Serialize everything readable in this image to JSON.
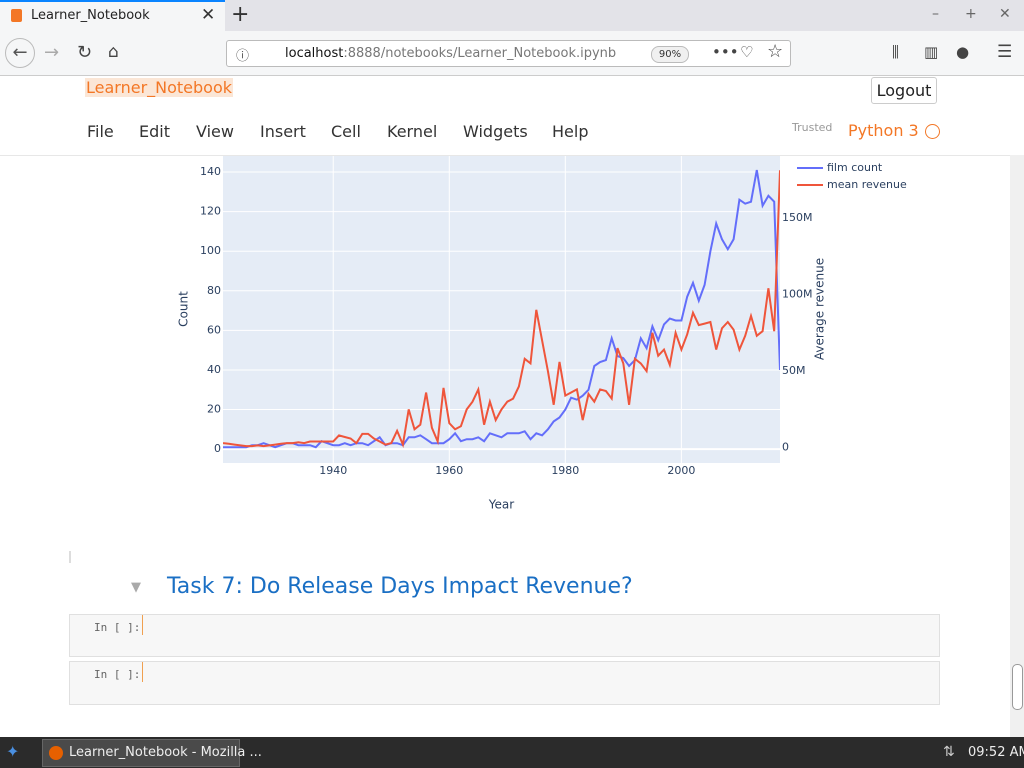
{
  "browser": {
    "tab_title": "Learner_Notebook",
    "url_host": "localhost",
    "url_rest": ":8888/notebooks/Learner_Notebook.ipynb",
    "zoom": "90%"
  },
  "notebook": {
    "name": "Learner_Notebook",
    "logout": "Logout",
    "menu": [
      "File",
      "Edit",
      "View",
      "Insert",
      "Cell",
      "Kernel",
      "Widgets",
      "Help"
    ],
    "trusted": "Trusted",
    "kernel": "Python 3"
  },
  "chart_data": {
    "type": "line",
    "xlabel": "Year",
    "ylabel": "Count",
    "y2label": "Average revenue",
    "grid": true,
    "legend": "top-right",
    "x": [
      1921,
      1922,
      1923,
      1924,
      1925,
      1926,
      1927,
      1928,
      1929,
      1930,
      1931,
      1932,
      1933,
      1934,
      1935,
      1936,
      1937,
      1938,
      1939,
      1940,
      1941,
      1942,
      1943,
      1944,
      1945,
      1946,
      1947,
      1948,
      1949,
      1950,
      1951,
      1952,
      1953,
      1954,
      1955,
      1956,
      1957,
      1958,
      1959,
      1960,
      1961,
      1962,
      1963,
      1964,
      1965,
      1966,
      1967,
      1968,
      1969,
      1970,
      1971,
      1972,
      1973,
      1974,
      1975,
      1976,
      1977,
      1978,
      1979,
      1980,
      1981,
      1982,
      1983,
      1984,
      1985,
      1986,
      1987,
      1988,
      1989,
      1990,
      1991,
      1992,
      1993,
      1994,
      1995,
      1996,
      1997,
      1998,
      1999,
      2000,
      2001,
      2002,
      2003,
      2004,
      2005,
      2006,
      2007,
      2008,
      2009,
      2010,
      2011,
      2012,
      2013,
      2014,
      2015,
      2016,
      2017
    ],
    "xlim": [
      1921,
      2017
    ],
    "xticks": [
      1940,
      1960,
      1980,
      2000
    ],
    "ylim": [
      -7,
      148.6
    ],
    "yticks": [
      0,
      20,
      40,
      60,
      80,
      100,
      120,
      140
    ],
    "y2lim": [
      -10000000,
      191000000
    ],
    "y2ticks": [
      0,
      {
        "value": 50000000,
        "label": "50M"
      },
      {
        "value": 100000000,
        "label": "100M"
      },
      {
        "value": 150000000,
        "label": "150M"
      }
    ],
    "series": [
      {
        "name": "film count",
        "color": "#636efa",
        "values": [
          1,
          1,
          1,
          1,
          1,
          2,
          2,
          3,
          2,
          1,
          2,
          3,
          3,
          2,
          2,
          2,
          1,
          4,
          3,
          2,
          2,
          3,
          2,
          3,
          3,
          2,
          4,
          6,
          2,
          3,
          3,
          2,
          6,
          6,
          7,
          5,
          3,
          3,
          3,
          5,
          8,
          4,
          5,
          5,
          6,
          4,
          8,
          7,
          6,
          8,
          8,
          8,
          9,
          5,
          8,
          7,
          10,
          14,
          16,
          20,
          26,
          25,
          27,
          30,
          42,
          44,
          45,
          56,
          47,
          46,
          42,
          45,
          56,
          51,
          62,
          55,
          63,
          66,
          65,
          65,
          77,
          84,
          75,
          83,
          100,
          114,
          106,
          101,
          106,
          126,
          124,
          125,
          141,
          123,
          128,
          125,
          40
        ]
      },
      {
        "name": "mean revenue",
        "color": "#ef553b",
        "axis": "y2",
        "values": [
          3000000,
          2500000,
          2000000,
          1500000,
          1000000,
          1000000,
          1500000,
          1000000,
          1500000,
          2000000,
          2500000,
          3000000,
          3000000,
          3500000,
          3000000,
          4000000,
          4000000,
          4000000,
          4000000,
          4000000,
          8000000,
          7000000,
          6000000,
          3000000,
          9000000,
          9000000,
          6000000,
          4000000,
          2000000,
          3000000,
          11000000,
          2000000,
          25000000,
          12000000,
          15000000,
          36000000,
          13000000,
          4000000,
          39000000,
          16000000,
          12000000,
          14000000,
          25000000,
          30000000,
          38000000,
          15000000,
          30000000,
          18000000,
          25000000,
          30000000,
          32000000,
          40000000,
          58000000,
          55000000,
          90000000,
          70000000,
          50000000,
          28000000,
          56000000,
          34000000,
          36000000,
          38000000,
          18000000,
          35000000,
          30000000,
          38000000,
          37000000,
          32000000,
          65000000,
          55000000,
          28000000,
          58000000,
          55000000,
          50000000,
          75000000,
          60000000,
          64000000,
          54000000,
          75000000,
          64000000,
          74000000,
          88000000,
          80000000,
          81000000,
          82000000,
          64000000,
          78000000,
          82000000,
          77000000,
          64000000,
          73000000,
          86000000,
          73000000,
          76000000,
          104000000,
          76000000,
          181000000
        ]
      }
    ]
  },
  "heading": "Task 7: Do Release Days Impact Revenue?",
  "cells": [
    "In [ ]:",
    "In [ ]:"
  ],
  "taskbar": {
    "window": "Learner_Notebook - Mozilla ...",
    "clock": "09:52 AM"
  }
}
